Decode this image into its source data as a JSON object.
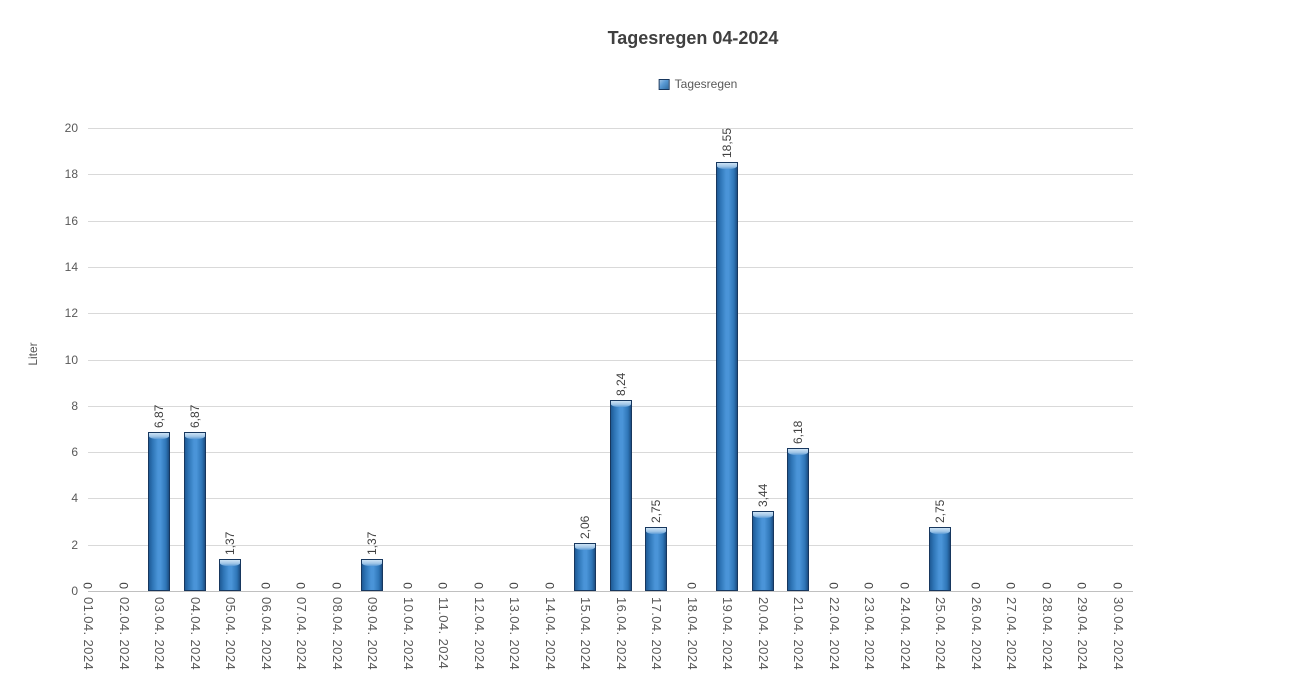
{
  "header": {
    "title": "Tagesregen 04-2024"
  },
  "legend": {
    "label": "Tagesregen",
    "marker_icon": "blue-gradient-square"
  },
  "colors": {
    "bar_fill": "#2e75b6",
    "bar_fill_light": "#4a94d8",
    "bar_edge": "#17375e",
    "bar_cap": "#9dc3e6",
    "gridline": "#d9d9d9",
    "axis_line": "#c0c0c0",
    "tick_text": "#595959",
    "label_text": "#404040",
    "title_text": "#404040"
  },
  "chart_data": {
    "type": "bar",
    "title": "Tagesregen 04-2024",
    "xlabel": "",
    "ylabel": "Liter",
    "ylim": [
      0,
      20
    ],
    "y_ticks": [
      0,
      2,
      4,
      6,
      8,
      10,
      12,
      14,
      16,
      18,
      20
    ],
    "grid": "horizontal",
    "legend_position": "top-center",
    "legend_entries": [
      "Tagesregen"
    ],
    "categories": [
      "01.04. 2024",
      "02.04. 2024",
      "03.04. 2024",
      "04.04. 2024",
      "05.04. 2024",
      "06.04. 2024",
      "07.04. 2024",
      "08.04. 2024",
      "09.04. 2024",
      "10.04. 2024",
      "11.04. 2024",
      "12.04. 2024",
      "13.04. 2024",
      "14.04. 2024",
      "15.04. 2024",
      "16.04. 2024",
      "17.04. 2024",
      "18.04. 2024",
      "19.04. 2024",
      "20.04. 2024",
      "21.04. 2024",
      "22.04. 2024",
      "23.04. 2024",
      "24.04. 2024",
      "25.04. 2024",
      "26.04. 2024",
      "27.04. 2024",
      "28.04. 2024",
      "29.04. 2024",
      "30.04. 2024"
    ],
    "values": [
      0,
      0,
      6.87,
      6.87,
      1.37,
      0,
      0,
      0,
      1.37,
      0,
      0,
      0,
      0,
      0,
      2.06,
      8.24,
      2.75,
      0,
      18.55,
      3.44,
      6.18,
      0,
      0,
      0,
      2.75,
      0,
      0,
      0,
      0,
      0
    ],
    "value_labels": [
      "0",
      "0",
      "6,87",
      "6,87",
      "1,37",
      "0",
      "0",
      "0",
      "1,37",
      "0",
      "0",
      "0",
      "0",
      "0",
      "2,06",
      "8,24",
      "2,75",
      "0",
      "18,55",
      "3,44",
      "6,18",
      "0",
      "0",
      "0",
      "2,75",
      "0",
      "0",
      "0",
      "0",
      "0"
    ]
  }
}
